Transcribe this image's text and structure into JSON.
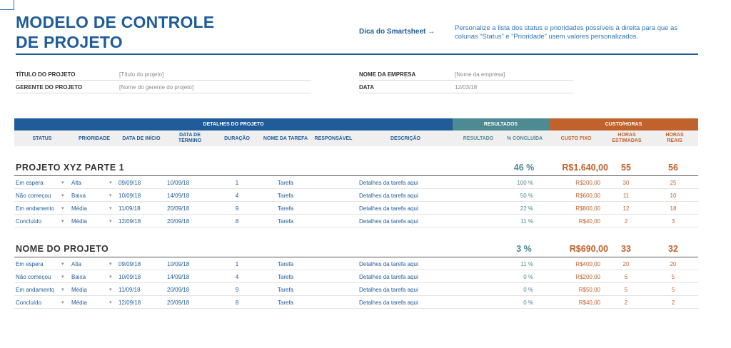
{
  "header": {
    "title_line1": "MODELO DE CONTROLE",
    "title_line2": "DE PROJETO",
    "tip_link": "Dica do Smartsheet →",
    "tip_text": "Personalize a lista dos status e prioridades possíveis à direita para que as colunas “Status” e “Prioridade” usem valores personalizados."
  },
  "info": {
    "project_title_label": "TÍTULO DO PROJETO",
    "project_title_value": "[Título do projeto]",
    "manager_label": "GERENTE DO PROJETO",
    "manager_value": "[Nome do gerente do projeto]",
    "company_label": "NOME DA EMPRESA",
    "company_value": "[Nome da empresa]",
    "date_label": "DATA",
    "date_value": "12/03/18"
  },
  "bands": {
    "details": "DETALHES DO PROJETO",
    "results": "RESULTADOS",
    "cost": "CUSTO/HORAS"
  },
  "columns": {
    "status": "STATUS",
    "priority": "PRIORIDADE",
    "start": "DATA DE INÍCIO",
    "end": "DATA DE TÉRMINO",
    "duration": "DURAÇÃO",
    "task": "NOME DA TAREFA",
    "owner": "RESPONSÁVEL",
    "description": "DESCRIÇÃO",
    "result": "RESULTADO",
    "percent": "% CONCLUÍDA",
    "fixed_cost": "CUSTO FIXO",
    "est_hours": "HORAS ESTIMADAS",
    "real_hours": "HORAS REAIS"
  },
  "projects": [
    {
      "name": "PROJETO XYZ PARTE 1",
      "total_percent": "46 %",
      "total_cost": "R$1.640,00",
      "total_est_hours": "55",
      "total_real_hours": "56",
      "rows": [
        {
          "status": "Em espera",
          "priority": "Alta",
          "start": "09/09/18",
          "end": "10/09/18",
          "duration": "1",
          "task": "Tarefa",
          "description": "Detalhes da tarefa aqui",
          "percent": "100 %",
          "cost": "R$200,00",
          "est": "30",
          "real": "25"
        },
        {
          "status": "Não começou",
          "priority": "Baixa",
          "start": "10/09/18",
          "end": "14/09/18",
          "duration": "4",
          "task": "Tarefa",
          "description": "Detalhes da tarefa aqui",
          "percent": "50 %",
          "cost": "R$600,00",
          "est": "11",
          "real": "10"
        },
        {
          "status": "Em andamento",
          "priority": "Média",
          "start": "11/09/18",
          "end": "20/09/18",
          "duration": "9",
          "task": "Tarefa",
          "description": "Detalhes da tarefa aqui",
          "percent": "22 %",
          "cost": "R$800,00",
          "est": "12",
          "real": "18"
        },
        {
          "status": "Concluído",
          "priority": "Média",
          "start": "12/09/18",
          "end": "20/09/18",
          "duration": "8",
          "task": "Tarefa",
          "description": "Detalhes da tarefa aqui",
          "percent": "11 %",
          "cost": "R$40,00",
          "est": "2",
          "real": "3"
        }
      ]
    },
    {
      "name": "NOME DO PROJETO",
      "total_percent": "3 %",
      "total_cost": "R$690,00",
      "total_est_hours": "33",
      "total_real_hours": "32",
      "rows": [
        {
          "status": "Em espera",
          "priority": "Alta",
          "start": "09/09/18",
          "end": "10/09/18",
          "duration": "1",
          "task": "Tarefa",
          "description": "Detalhes da tarefa aqui",
          "percent": "11 %",
          "cost": "R$400,00",
          "est": "20",
          "real": "20"
        },
        {
          "status": "Não começou",
          "priority": "Baixa",
          "start": "10/09/18",
          "end": "14/09/18",
          "duration": "4",
          "task": "Tarefa",
          "description": "Detalhes da tarefa aqui",
          "percent": "0 %",
          "cost": "R$200,00",
          "est": "6",
          "real": "5"
        },
        {
          "status": "Em andamento",
          "priority": "Média",
          "start": "11/09/18",
          "end": "20/09/18",
          "duration": "9",
          "task": "Tarefa",
          "description": "Detalhes da tarefa aqui",
          "percent": "0 %",
          "cost": "R$50,00",
          "est": "5",
          "real": "5"
        },
        {
          "status": "Concluído",
          "priority": "Média",
          "start": "12/09/18",
          "end": "20/09/18",
          "duration": "8",
          "task": "Tarefa",
          "description": "Detalhes da tarefa aqui",
          "percent": "0 %",
          "cost": "R$40,00",
          "est": "2",
          "real": "2"
        }
      ]
    }
  ],
  "colors": {
    "primary_blue": "#1f5c99",
    "results_teal": "#4d8a92",
    "cost_orange": "#c0622c"
  }
}
